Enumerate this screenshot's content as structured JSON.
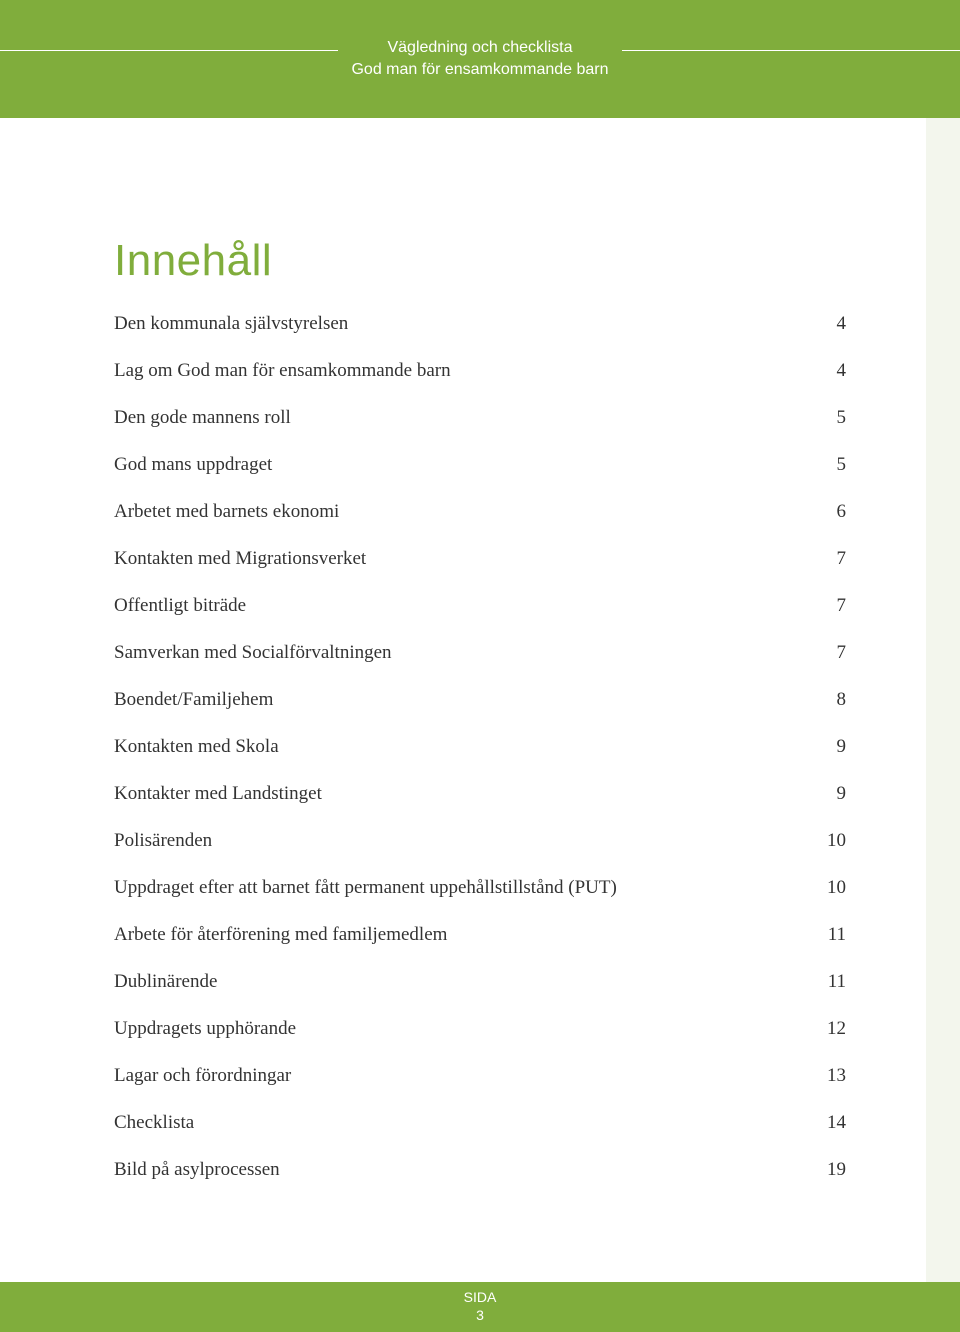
{
  "colors": {
    "accent": "#80ad3c",
    "header_text": "#ffffff",
    "body_text": "#333333",
    "page_bg": "#ffffff",
    "right_edge": "#f3f6ed"
  },
  "typography": {
    "title_fontsize_pt": 33,
    "body_fontsize_pt": 14,
    "header_fontsize_pt": 12,
    "title_font": "Arial",
    "body_font": "Georgia"
  },
  "header": {
    "line1": "Vägledning och checklista",
    "line2": "God man för ensamkommande barn"
  },
  "toc": {
    "title": "Innehåll",
    "entries": [
      {
        "label": "Den kommunala självstyrelsen",
        "page": "4"
      },
      {
        "label": "Lag om God man för ensamkommande barn",
        "page": "4"
      },
      {
        "label": "Den gode mannens roll",
        "page": "5"
      },
      {
        "label": "God mans uppdraget",
        "page": "5"
      },
      {
        "label": "Arbetet med barnets ekonomi",
        "page": "6"
      },
      {
        "label": "Kontakten med Migrationsverket",
        "page": "7"
      },
      {
        "label": "Offentligt biträde",
        "page": "7"
      },
      {
        "label": "Samverkan med Socialförvaltningen",
        "page": "7"
      },
      {
        "label": "Boendet/Familjehem",
        "page": "8"
      },
      {
        "label": "Kontakten med Skola",
        "page": "9"
      },
      {
        "label": "Kontakter med Landstinget",
        "page": "9"
      },
      {
        "label": "Polisärenden",
        "page": "10"
      },
      {
        "label": "Uppdraget efter att barnet fått permanent uppehållstillstånd (PUT)",
        "page": "10"
      },
      {
        "label": "Arbete för återförening med familjemedlem",
        "page": "11"
      },
      {
        "label": "Dublinärende",
        "page": "11"
      },
      {
        "label": "Uppdragets upphörande",
        "page": "12"
      },
      {
        "label": "Lagar och förordningar",
        "page": "13"
      },
      {
        "label": "Checklista",
        "page": "14"
      },
      {
        "label": "Bild på asylprocessen",
        "page": "19"
      }
    ]
  },
  "footer": {
    "label": "SIDA",
    "page_number": "3"
  }
}
